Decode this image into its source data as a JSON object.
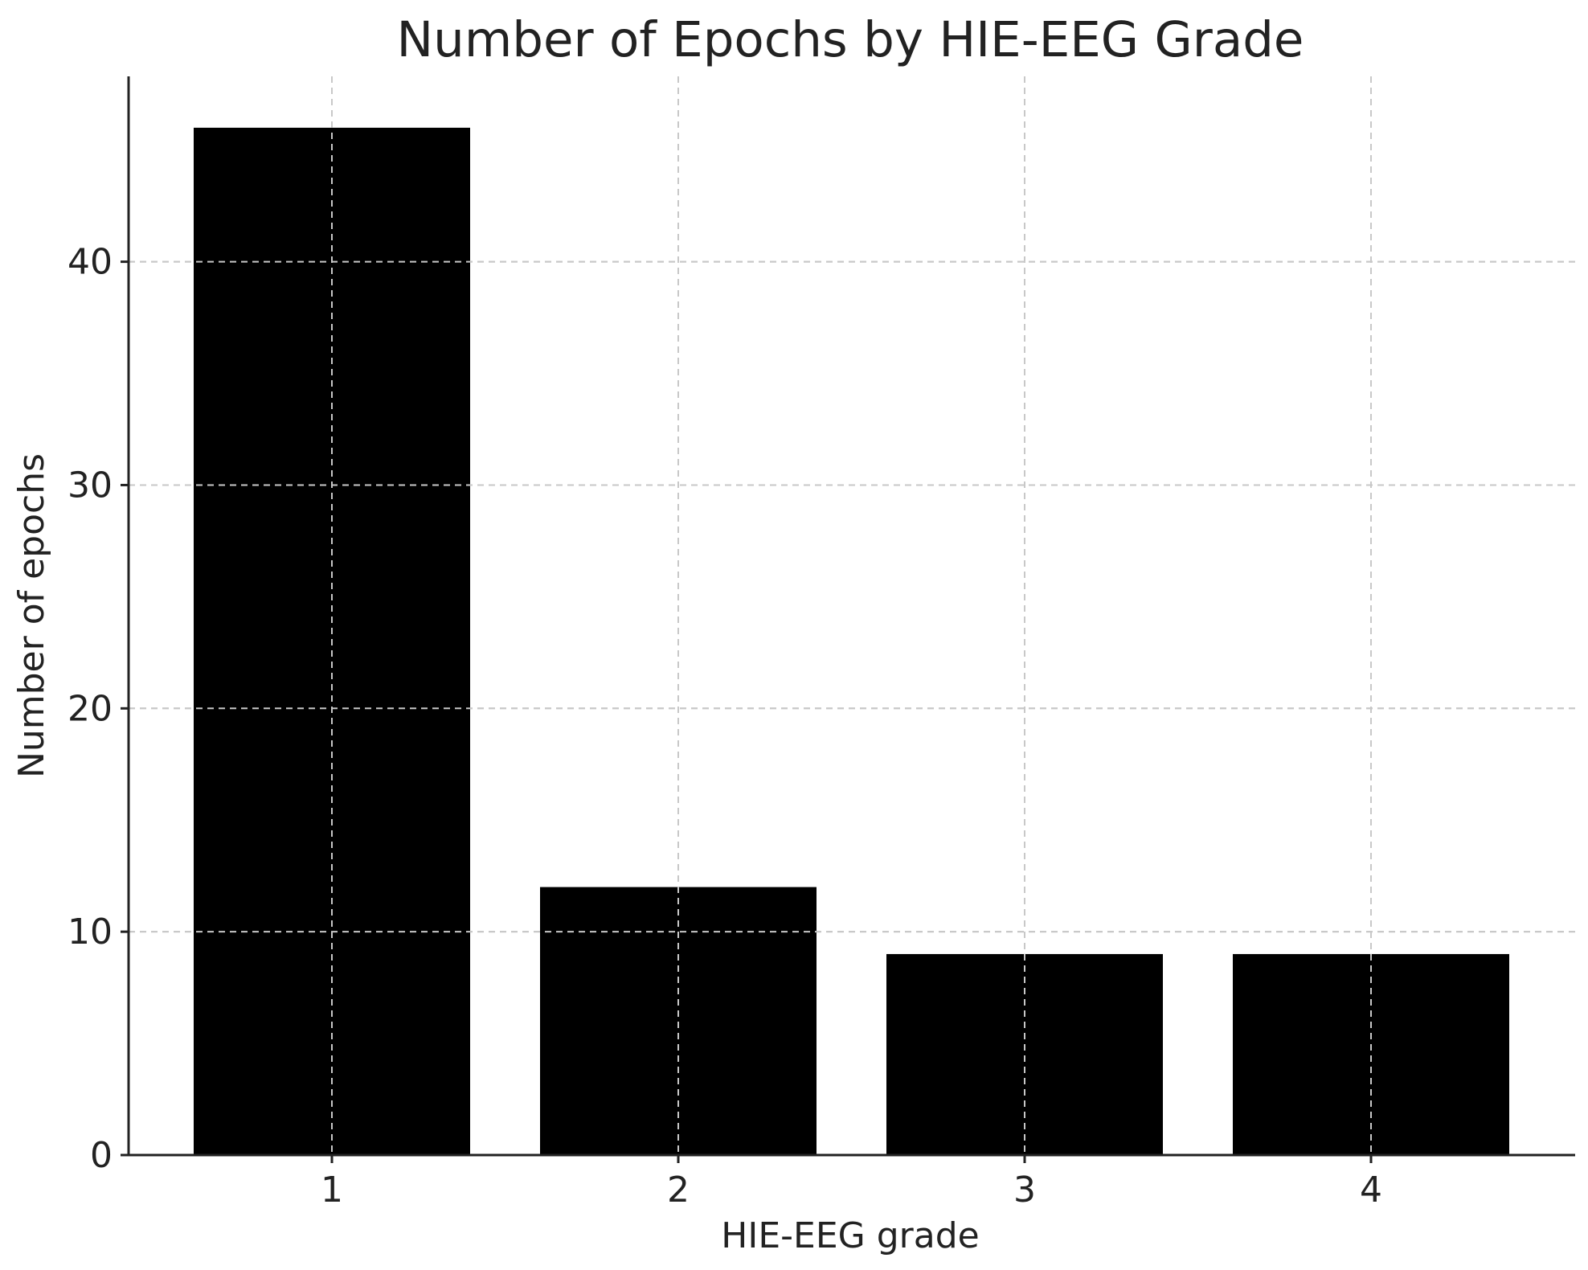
{
  "chart_data": {
    "type": "bar",
    "title": "Number of Epochs by HIE-EEG Grade",
    "xlabel": "HIE-EEG grade",
    "ylabel": "Number of epochs",
    "categories": [
      "1",
      "2",
      "3",
      "4"
    ],
    "values": [
      46,
      12,
      9,
      9
    ],
    "ylim": [
      0,
      48.3
    ],
    "yticks": [
      0,
      10,
      20,
      30,
      40
    ],
    "grid": true,
    "bar_color": "#000000",
    "grid_color": "#c8c8c8"
  }
}
